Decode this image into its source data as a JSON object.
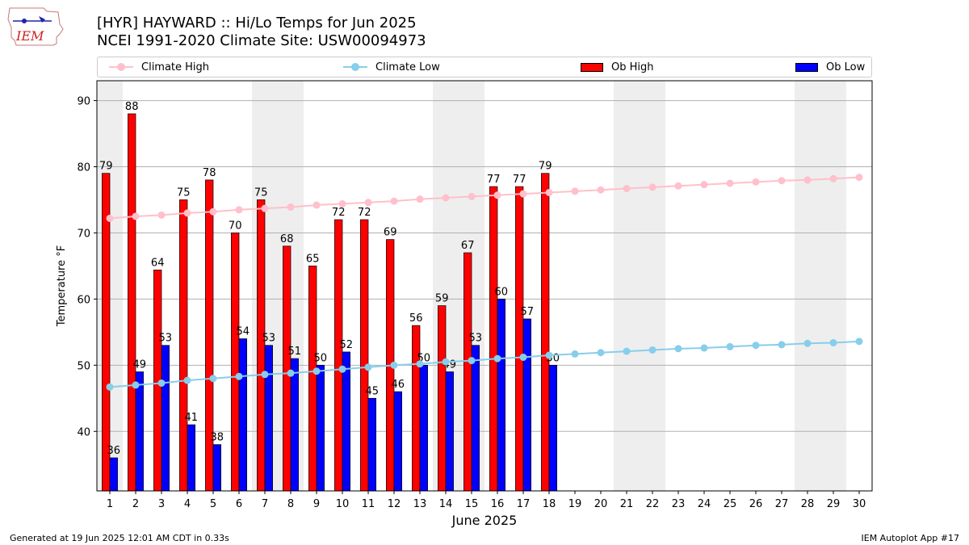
{
  "header": {
    "title_line1": "[HYR] HAYWARD :: Hi/Lo Temps for Jun 2025",
    "title_line2": "NCEI 1991-2020 Climate Site: USW00094973"
  },
  "logo": {
    "text": "IEM",
    "icon": "iem-iowa-logo"
  },
  "legend": {
    "climate_high": "Climate High",
    "climate_low": "Climate Low",
    "ob_high": "Ob High",
    "ob_low": "Ob Low"
  },
  "colors": {
    "climate_high": "#ffc0cb",
    "climate_low": "#87ceeb",
    "ob_high": "#ff0000",
    "ob_low": "#0000ff",
    "weekend_band": "#eeeeee",
    "grid": "#b0b0b0"
  },
  "footer": {
    "left": "Generated at 19 Jun 2025 12:01 AM CDT in 0.33s",
    "right": "IEM Autoplot App #17"
  },
  "chart_data": {
    "type": "bar",
    "xlabel": "June 2025",
    "ylabel": "Temperature °F",
    "ylim": [
      31,
      93
    ],
    "xlim": [
      0.5,
      30.5
    ],
    "yticks": [
      40,
      50,
      60,
      70,
      80,
      90
    ],
    "days": [
      1,
      2,
      3,
      4,
      5,
      6,
      7,
      8,
      9,
      10,
      11,
      12,
      13,
      14,
      15,
      16,
      17,
      18,
      19,
      20,
      21,
      22,
      23,
      24,
      25,
      26,
      27,
      28,
      29,
      30
    ],
    "weekend_bands": [
      [
        1
      ],
      [
        7,
        8
      ],
      [
        14,
        15
      ],
      [
        21,
        22
      ],
      [
        28,
        29
      ]
    ],
    "grid": "horizontal",
    "legend_position": "top",
    "series": [
      {
        "name": "Ob High",
        "type": "bar",
        "values": [
          79,
          88,
          64.4,
          75,
          78,
          70,
          75,
          68,
          65,
          72,
          72,
          69,
          56,
          59,
          67,
          77,
          77,
          79
        ],
        "labels": [
          "79",
          "88",
          "64",
          "75",
          "78",
          "70",
          "75",
          "68",
          "65",
          "72",
          "72",
          "69",
          "56",
          "59",
          "67",
          "77",
          "77",
          "79"
        ]
      },
      {
        "name": "Ob Low",
        "type": "bar",
        "values": [
          36,
          49,
          53,
          41,
          38,
          54,
          53,
          51,
          50,
          52,
          45,
          46,
          50,
          49,
          53,
          60,
          57,
          50
        ],
        "labels": [
          "36",
          "49",
          "53",
          "41",
          "38",
          "54",
          "53",
          "51",
          "50",
          "52",
          "45",
          "46",
          "50",
          "49",
          "53",
          "60",
          "57",
          "50"
        ]
      },
      {
        "name": "Climate High",
        "type": "line",
        "values": [
          72.2,
          72.5,
          72.7,
          73.0,
          73.2,
          73.5,
          73.7,
          73.9,
          74.2,
          74.4,
          74.6,
          74.8,
          75.1,
          75.3,
          75.5,
          75.7,
          75.9,
          76.1,
          76.3,
          76.5,
          76.7,
          76.9,
          77.1,
          77.3,
          77.5,
          77.7,
          77.9,
          78.0,
          78.2,
          78.4
        ]
      },
      {
        "name": "Climate Low",
        "type": "line",
        "values": [
          46.7,
          47.0,
          47.3,
          47.7,
          48.0,
          48.3,
          48.6,
          48.8,
          49.1,
          49.4,
          49.7,
          50.0,
          50.2,
          50.5,
          50.7,
          51.0,
          51.2,
          51.5,
          51.7,
          51.9,
          52.1,
          52.3,
          52.5,
          52.6,
          52.8,
          53.0,
          53.1,
          53.3,
          53.4,
          53.6
        ]
      }
    ]
  }
}
